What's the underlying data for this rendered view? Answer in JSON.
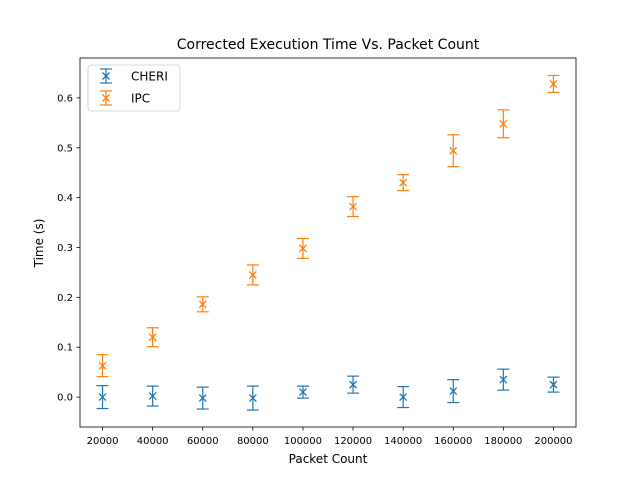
{
  "chart_data": {
    "type": "scatter",
    "title": "Corrected Execution Time Vs. Packet Count",
    "xlabel": "Packet Count",
    "ylabel": "Time (s)",
    "x": [
      20000,
      40000,
      60000,
      80000,
      100000,
      120000,
      140000,
      160000,
      180000,
      200000
    ],
    "xticks": [
      "20000",
      "40000",
      "60000",
      "80000",
      "100000",
      "120000",
      "140000",
      "160000",
      "180000",
      "200000"
    ],
    "yticks": [
      "0.0",
      "0.1",
      "0.2",
      "0.3",
      "0.4",
      "0.5",
      "0.6"
    ],
    "xlim": [
      11000,
      209000
    ],
    "ylim": [
      -0.06,
      0.68
    ],
    "grid": false,
    "legend_position": "top-left",
    "series": [
      {
        "name": "CHERI",
        "color": "#1f77b4",
        "marker": "x",
        "values": [
          0.0,
          0.002,
          -0.002,
          -0.002,
          0.01,
          0.025,
          0.0,
          0.012,
          0.035,
          0.025
        ],
        "errors": [
          0.023,
          0.02,
          0.022,
          0.024,
          0.012,
          0.017,
          0.021,
          0.023,
          0.021,
          0.015
        ]
      },
      {
        "name": "IPC",
        "color": "#ff7f0e",
        "marker": "x",
        "values": [
          0.063,
          0.12,
          0.186,
          0.245,
          0.298,
          0.382,
          0.43,
          0.494,
          0.548,
          0.628
        ],
        "errors": [
          0.022,
          0.019,
          0.015,
          0.02,
          0.02,
          0.02,
          0.016,
          0.032,
          0.028,
          0.017
        ]
      }
    ]
  }
}
